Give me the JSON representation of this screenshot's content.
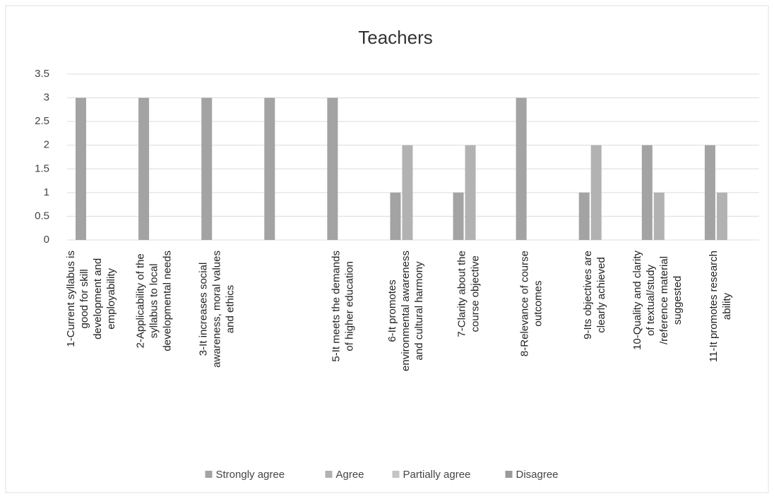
{
  "chart_data": {
    "type": "bar",
    "title": "Teachers",
    "categories": [
      "1-Current syllabus is good for skill development and employability",
      "2-Applicability of the syllabus to local developmental needs",
      "3-It increases social awareness, moral values and ethics",
      null,
      "5-It meets the demands of higher education",
      "6-It promotes environmental awareness and cultural harmony",
      "7-Clarity about the course objective",
      "8-Relevance of course outcomes",
      "9-Its objectives are clearly achieved",
      "10-Quality and clarity of textual/study /reference material suggested",
      "11-It promotes research ability"
    ],
    "series": [
      {
        "name": "Strongly agree",
        "color": "#a3a3a3",
        "values": [
          3,
          3,
          3,
          3,
          3,
          1,
          1,
          3,
          1,
          2,
          2
        ]
      },
      {
        "name": "Agree",
        "color": "#b2b2b2",
        "values": [
          0,
          0,
          0,
          0,
          0,
          2,
          2,
          0,
          2,
          1,
          1
        ]
      },
      {
        "name": "Partially agree",
        "color": "#c4c4c4",
        "values": [
          0,
          0,
          0,
          0,
          0,
          0,
          0,
          0,
          0,
          0,
          0
        ]
      },
      {
        "name": "Disagree",
        "color": "#9a9a9a",
        "values": [
          0,
          0,
          0,
          0,
          0,
          0,
          0,
          0,
          0,
          0,
          0
        ]
      }
    ],
    "ylim": [
      0,
      3.5
    ],
    "yticks": [
      0,
      0.5,
      1,
      1.5,
      2,
      2.5,
      3,
      3.5
    ],
    "grid": true,
    "legend": "bottom"
  }
}
